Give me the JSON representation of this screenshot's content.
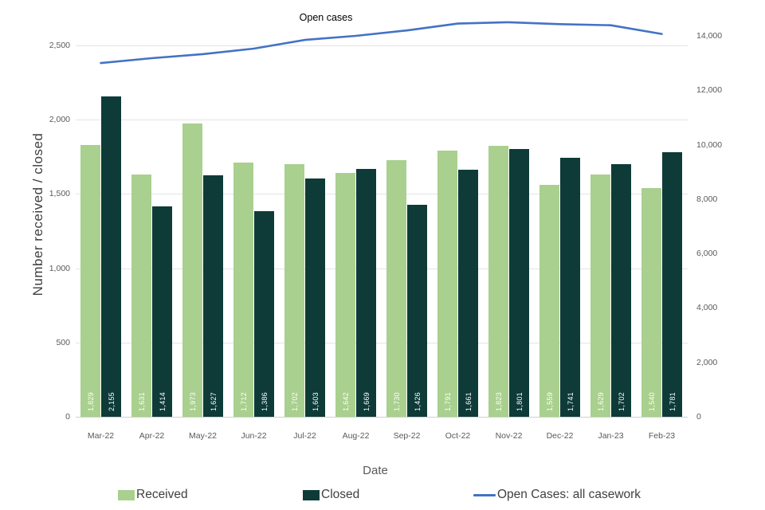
{
  "title": "Open cases",
  "axes": {
    "left": {
      "label": "Number received / closed",
      "ticks": [
        "0",
        "500",
        "1,000",
        "1,500",
        "2,000",
        "2,500"
      ],
      "tick_values": [
        0,
        500,
        1000,
        1500,
        2000,
        2500
      ],
      "ylim": [
        0,
        2500
      ]
    },
    "right": {
      "ticks": [
        "0",
        "2,000",
        "4,000",
        "6,000",
        "8,000",
        "10,000",
        "12,000",
        "14,000"
      ],
      "tick_values": [
        0,
        2000,
        4000,
        6000,
        8000,
        10000,
        12000,
        14000
      ],
      "ylim": [
        0,
        14000
      ]
    },
    "x": {
      "label": "Date"
    }
  },
  "legend": [
    {
      "label": "Received",
      "marker": "swatch",
      "color": "#a9d08e"
    },
    {
      "label": "Closed",
      "marker": "swatch",
      "color": "#0e3b38"
    },
    {
      "label": "Open Cases: all casework",
      "marker": "line",
      "color": "#4472c4"
    }
  ],
  "colors": {
    "received": "#a9d08e",
    "closed": "#0e3b38",
    "open_cases_line": "#4472c4",
    "gridline": "#e4e4e4",
    "axis_text": "#595959"
  },
  "chart_data": {
    "type": "bar",
    "title": "Open cases",
    "xlabel": "Date",
    "ylabel": "Number received / closed",
    "categories": [
      "Mar-22",
      "Apr-22",
      "May-22",
      "Jun-22",
      "Jul-22",
      "Aug-22",
      "Sep-22",
      "Oct-22",
      "Nov-22",
      "Dec-22",
      "Jan-23",
      "Feb-23"
    ],
    "series": [
      {
        "name": "Received",
        "type": "bar",
        "axis": "left",
        "color": "#a9d08e",
        "values": [
          1829,
          1631,
          1973,
          1712,
          1702,
          1642,
          1730,
          1791,
          1823,
          1559,
          1629,
          1540
        ]
      },
      {
        "name": "Closed",
        "type": "bar",
        "axis": "left",
        "color": "#0e3b38",
        "values": [
          2155,
          1414,
          1627,
          1386,
          1603,
          1669,
          1426,
          1661,
          1801,
          1741,
          1702,
          1781
        ]
      },
      {
        "name": "Open Cases: all casework",
        "type": "line",
        "axis": "right",
        "color": "#4472c4",
        "values": [
          13000,
          13180,
          13330,
          13530,
          13850,
          14000,
          14200,
          14450,
          14500,
          14430,
          14390,
          14070
        ]
      }
    ],
    "left_ylim": [
      0,
      2500
    ],
    "right_ylim": [
      0,
      14000
    ],
    "grid": true,
    "legend_position": "bottom",
    "data_labels": "on bars, rotated 90deg, white"
  }
}
